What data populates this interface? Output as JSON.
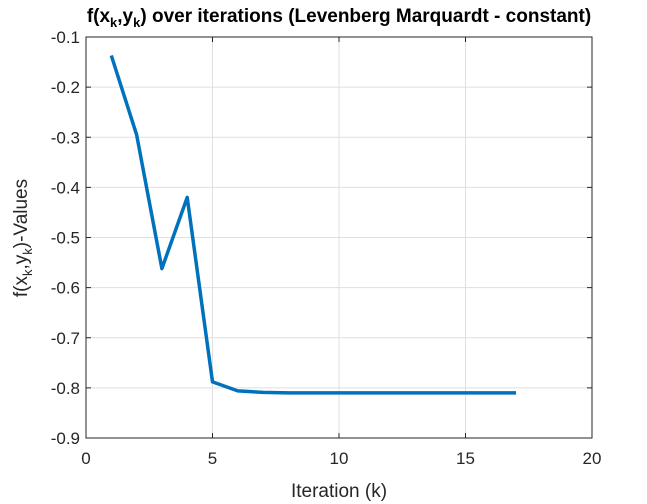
{
  "chart_data": {
    "type": "line",
    "title": {
      "prefix": "f(x",
      "sub1": "k",
      "mid": ",y",
      "sub2": "k",
      "suffix": ") over iterations (Levenberg Marquardt - constant)"
    },
    "xlabel": "Iteration (k)",
    "ylabel": {
      "prefix": "f(x",
      "sub1": "k",
      "mid": ",y",
      "sub2": "k",
      "suffix": ")-Values"
    },
    "xlim": [
      0,
      20
    ],
    "ylim": [
      -0.9,
      -0.1
    ],
    "xticks": [
      0,
      5,
      10,
      15,
      20
    ],
    "xtick_labels": [
      "0",
      "5",
      "10",
      "15",
      "20"
    ],
    "yticks": [
      -0.9,
      -0.8,
      -0.7,
      -0.6,
      -0.5,
      -0.4,
      -0.3,
      -0.2,
      -0.1
    ],
    "ytick_labels": [
      "-0.9",
      "-0.8",
      "-0.7",
      "-0.6",
      "-0.5",
      "-0.4",
      "-0.3",
      "-0.2",
      "-0.1"
    ],
    "grid": true,
    "series": [
      {
        "color": "#0072BD",
        "x": [
          1,
          2,
          3,
          4,
          5,
          6,
          7,
          8,
          9,
          10,
          11,
          12,
          13,
          14,
          15,
          16,
          17
        ],
        "y": [
          -0.137,
          -0.295,
          -0.562,
          -0.42,
          -0.788,
          -0.806,
          -0.809,
          -0.81,
          -0.81,
          -0.81,
          -0.81,
          -0.81,
          -0.81,
          -0.81,
          -0.81,
          -0.81,
          -0.81
        ]
      }
    ]
  }
}
